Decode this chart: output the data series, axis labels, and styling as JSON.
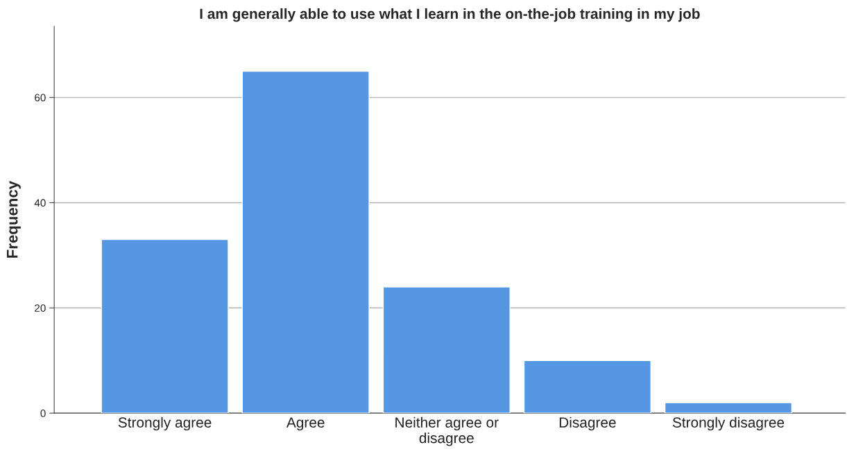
{
  "chart_data": {
    "type": "bar",
    "title": "I am generally able to use what I learn in the on-the-job training in my job",
    "ylabel": "Frequency",
    "categories": [
      "Strongly agree",
      "Agree",
      "Neither agree or disagree",
      "Disagree",
      "Strongly disagree"
    ],
    "values": [
      33,
      65,
      24,
      10,
      2
    ],
    "color": "#5597e3",
    "ylim": [
      0,
      73.5
    ],
    "yticks": [
      0,
      20,
      40,
      60
    ],
    "grid": "y"
  }
}
